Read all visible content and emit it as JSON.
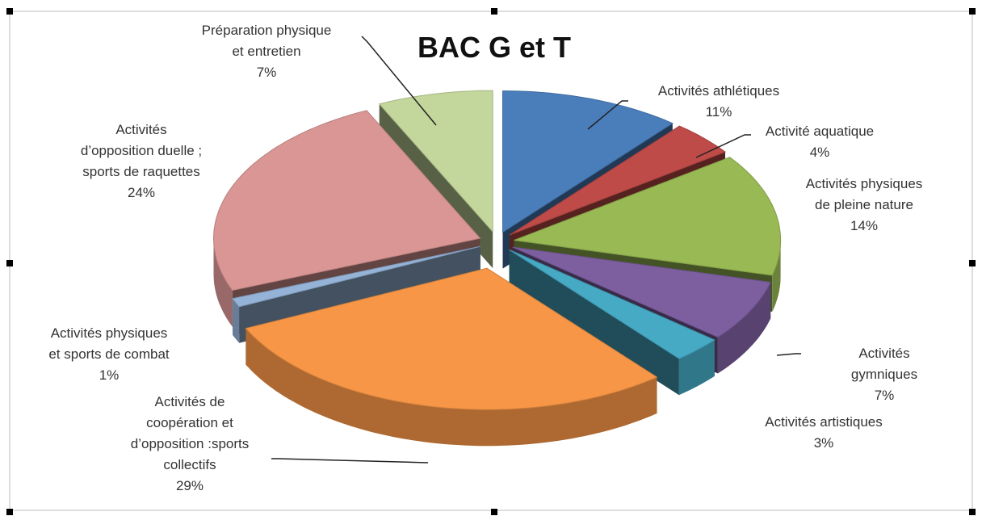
{
  "chart_data": {
    "type": "pie3d",
    "title": "BAC G et T",
    "categories": [
      "Activités athlétiques",
      "Activité aquatique",
      "Activités physiques\nde pleine nature",
      "Activités gymniques",
      "Activités artistiques",
      "Activités de\ncoopération et\nd’opposition :sports\ncollectifs",
      "Activités physiques\net sports de combat",
      "Activités\nd’opposition duelle ;\nsports de raquettes",
      "Préparation physique\net entretien"
    ],
    "values": [
      11,
      4,
      14,
      7,
      3,
      29,
      1,
      24,
      7
    ],
    "value_labels": [
      "11%",
      "4%",
      "14%",
      "7%",
      "3%",
      "29%",
      "1%",
      "24%",
      "7%"
    ],
    "colors": [
      "#4a7ebb",
      "#be4b48",
      "#98b954",
      "#7d5fa0",
      "#46aac5",
      "#f79646",
      "#95b3d7",
      "#d99694",
      "#c3d69b"
    ]
  }
}
